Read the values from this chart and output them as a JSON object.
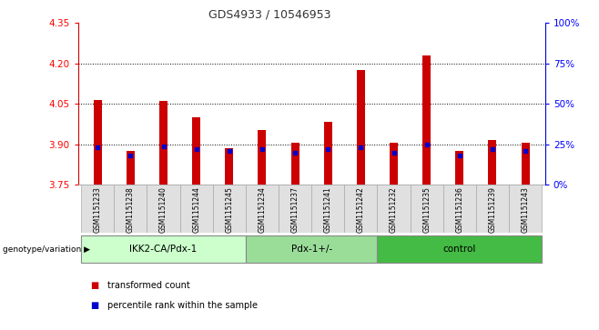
{
  "title": "GDS4933 / 10546953",
  "samples": [
    "GSM1151233",
    "GSM1151238",
    "GSM1151240",
    "GSM1151244",
    "GSM1151245",
    "GSM1151234",
    "GSM1151237",
    "GSM1151241",
    "GSM1151242",
    "GSM1151232",
    "GSM1151235",
    "GSM1151236",
    "GSM1151239",
    "GSM1151243"
  ],
  "red_values": [
    4.065,
    3.875,
    4.06,
    4.0,
    3.885,
    3.955,
    3.905,
    3.985,
    4.175,
    3.905,
    4.23,
    3.875,
    3.915,
    3.905
  ],
  "blue_values": [
    23,
    18,
    24,
    22,
    21,
    22,
    20,
    22,
    23,
    20,
    25,
    18,
    22,
    21
  ],
  "groups": [
    {
      "label": "IKK2-CA/Pdx-1",
      "start": 0,
      "end": 5
    },
    {
      "label": "Pdx-1+/-",
      "start": 5,
      "end": 9
    },
    {
      "label": "control",
      "start": 9,
      "end": 14
    }
  ],
  "group_colors": [
    "#ccffcc",
    "#99dd99",
    "#44bb44"
  ],
  "ylim_left": [
    3.75,
    4.35
  ],
  "ylim_right": [
    0,
    100
  ],
  "yticks_left": [
    3.75,
    3.9,
    4.05,
    4.2,
    4.35
  ],
  "yticks_right": [
    0,
    25,
    50,
    75,
    100
  ],
  "bar_width": 0.25,
  "bar_bottom": 3.75,
  "red_color": "#cc0000",
  "blue_color": "#0000cc",
  "background_color": "#ffffff",
  "grid_color": "#000000",
  "genotype_label": "genotype/variation",
  "legend_red": "transformed count",
  "legend_blue": "percentile rank within the sample",
  "title_color": "#333333"
}
